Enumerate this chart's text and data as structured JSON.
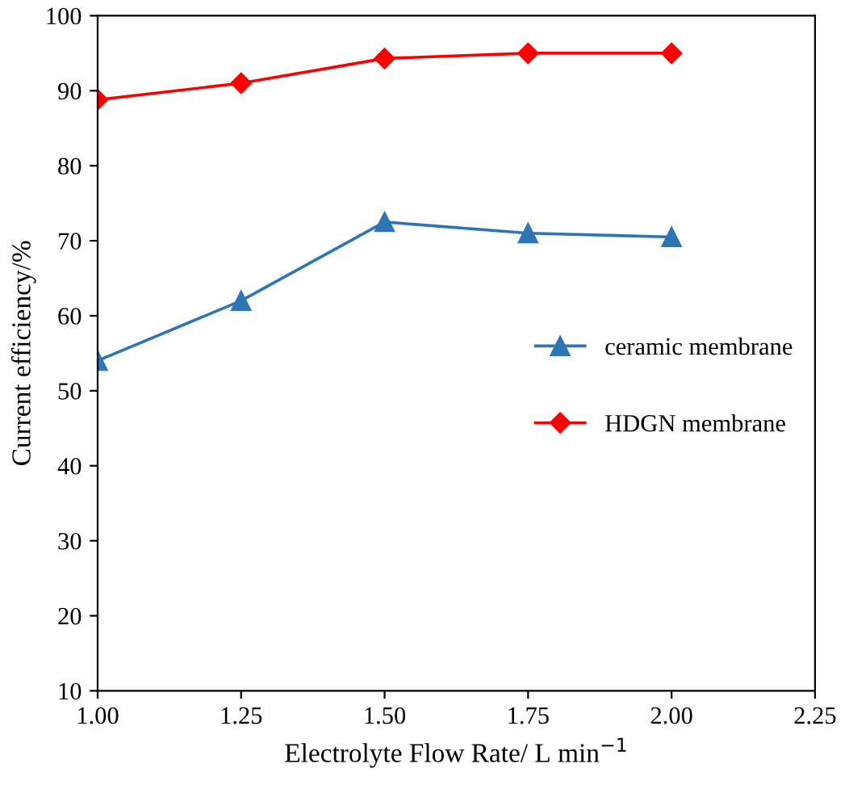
{
  "chart_data": {
    "type": "line",
    "xlabel": "Electrolyte Flow Rate/ L min$^{−1}$",
    "ylabel": "Current efficiency/%",
    "xlim": [
      1.0,
      2.25
    ],
    "xticks": [
      {
        "value": 1.0,
        "label": "1.00"
      },
      {
        "value": 1.25,
        "label": "1.25"
      },
      {
        "value": 1.5,
        "label": "1.50"
      },
      {
        "value": 1.75,
        "label": "1.75"
      },
      {
        "value": 2.0,
        "label": "2.00"
      },
      {
        "value": 2.25,
        "label": "2.25"
      }
    ],
    "ylim": [
      10,
      100
    ],
    "yticks": [
      10,
      20,
      30,
      40,
      50,
      60,
      70,
      80,
      90,
      100
    ],
    "x": [
      1.0,
      1.25,
      1.5,
      1.75,
      2.0
    ],
    "series": [
      {
        "name": "ceramic membrane",
        "color": "#2e75b6",
        "marker": "triangle",
        "values": [
          54,
          62,
          72.5,
          71,
          70.5
        ]
      },
      {
        "name": "HDGN membrane",
        "color": "#ff0000",
        "marker": "diamond",
        "values": [
          88.8,
          91,
          94.3,
          95,
          95
        ]
      }
    ],
    "line_style": "solid",
    "grid": false,
    "legend": "center right"
  }
}
